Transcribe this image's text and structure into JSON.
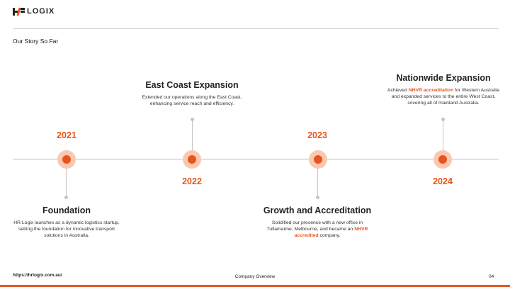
{
  "brand": {
    "logo_text": "LOGIX",
    "accent": "#e8541c"
  },
  "header": {
    "subtitle": "Our Story So Far"
  },
  "timeline": [
    {
      "year": "2021",
      "title": "Foundation",
      "desc_parts": [
        "HR Logix launches as a dynamic logistics startup, setting the foundation for innovative transport solutions in Australia."
      ]
    },
    {
      "year": "2022",
      "title": "East Coast Expansion",
      "desc_parts": [
        "Extended our operations along the East Coast, enhancing service reach and efficiency."
      ]
    },
    {
      "year": "2023",
      "title": "Growth and Accreditation",
      "desc_parts": [
        "Solidified our presence with a new office in Tullamarine, Melbourne, and became an ",
        "NHVR accredited",
        " company."
      ]
    },
    {
      "year": "2024",
      "title": "Nationwide Expansion",
      "desc_parts": [
        "Achieved ",
        "NHVR accreditation",
        " for Western Australia and expanded services to the entire West Coast,  covering all of mainland Australia."
      ]
    }
  ],
  "footer": {
    "url": "https://hrlogix.com.au/",
    "center": "Company Overview",
    "page": "04"
  }
}
